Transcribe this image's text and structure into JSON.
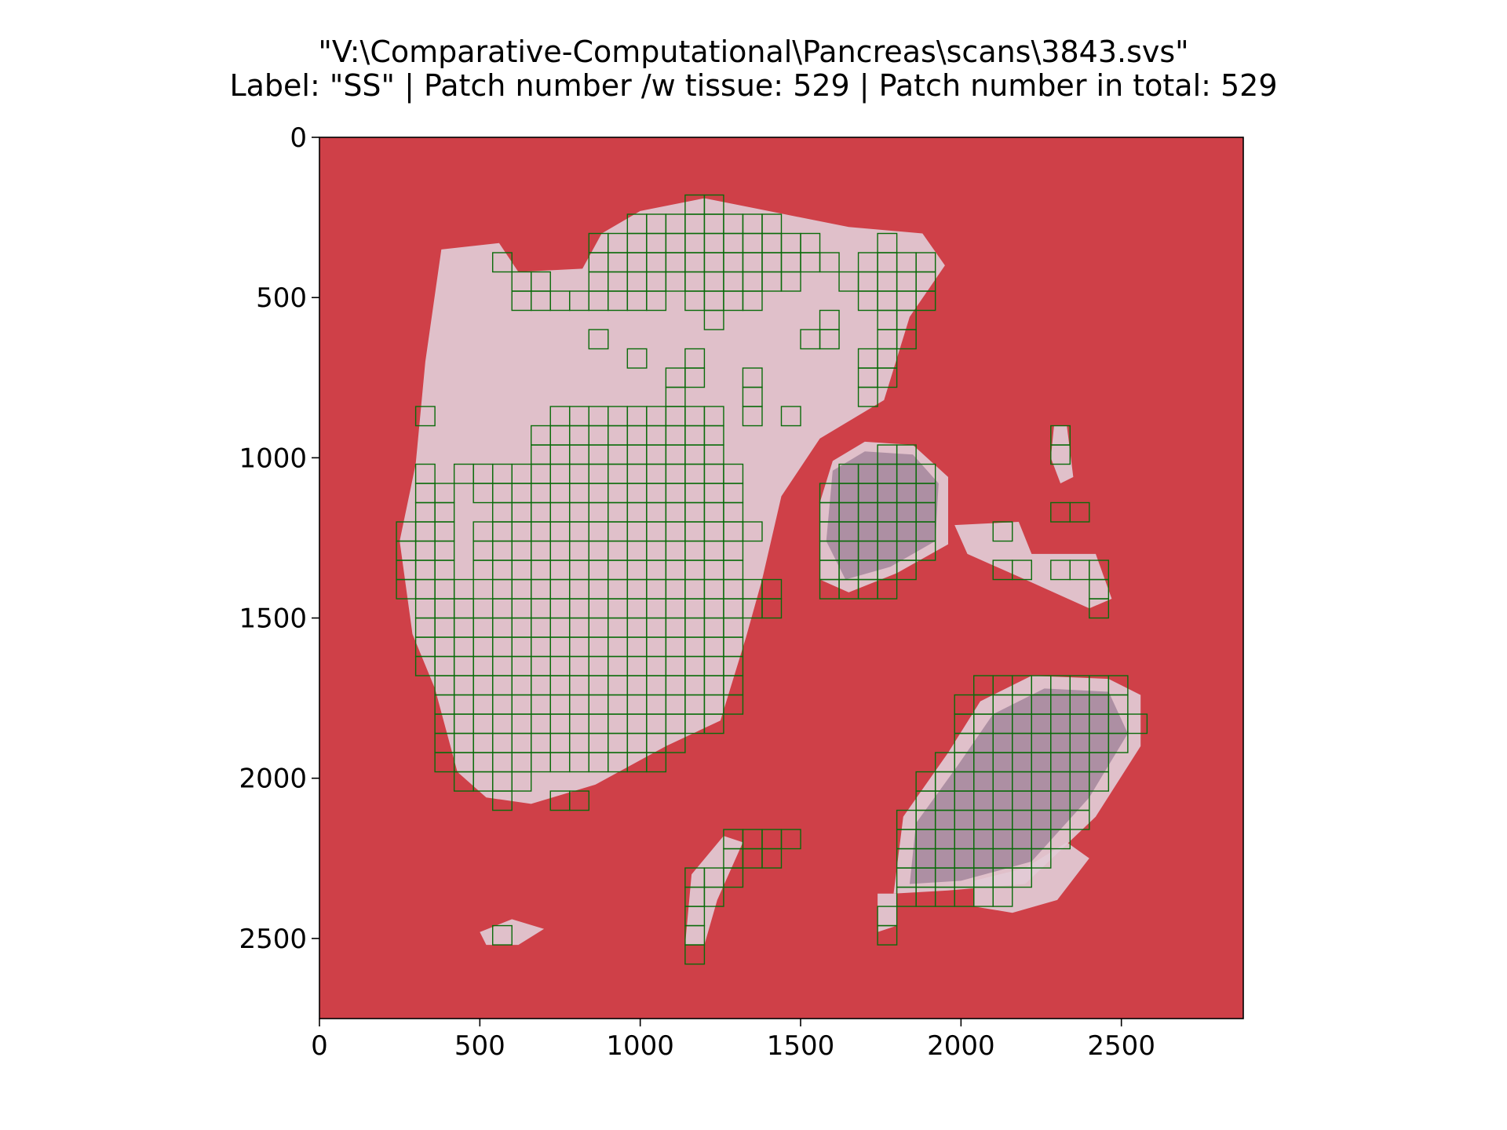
{
  "chart_data": {
    "type": "heatmap",
    "title_line1": "\"V:\\Comparative-Computational\\Pancreas\\scans\\3843.svs\"",
    "title_line2": "Label: \"SS\" | Patch number /w tissue: 529 | Patch number in total: 529",
    "xlim": [
      0,
      2880
    ],
    "ylim": [
      2750,
      0
    ],
    "x_ticks": [
      0,
      500,
      1000,
      1500,
      2000,
      2500
    ],
    "y_ticks": [
      0,
      500,
      1000,
      1500,
      2000,
      2500
    ],
    "patch_size_units": 60,
    "patch_count_with_tissue": 529,
    "patch_count_total": 529,
    "colors": {
      "background": "#cf4048",
      "tissue": "#e2cbd6",
      "tissue_dark": "#9c7f96",
      "patch_outline": "#0a6b0a",
      "axis": "#000000"
    },
    "patch_region_rows": [
      {
        "y": 180,
        "x": [
          [
            1140,
            1260
          ]
        ]
      },
      {
        "y": 240,
        "x": [
          [
            960,
            1440
          ]
        ]
      },
      {
        "y": 300,
        "x": [
          [
            840,
            1560
          ],
          [
            1740,
            1800
          ]
        ]
      },
      {
        "y": 360,
        "x": [
          [
            540,
            600
          ],
          [
            840,
            1620
          ],
          [
            1680,
            1920
          ]
        ]
      },
      {
        "y": 420,
        "x": [
          [
            600,
            720
          ],
          [
            840,
            1500
          ],
          [
            1620,
            1920
          ]
        ]
      },
      {
        "y": 480,
        "x": [
          [
            600,
            1080
          ],
          [
            1140,
            1380
          ],
          [
            1680,
            1920
          ]
        ]
      },
      {
        "y": 540,
        "x": [
          [
            1200,
            1260
          ],
          [
            1560,
            1620
          ],
          [
            1740,
            1860
          ]
        ]
      },
      {
        "y": 600,
        "x": [
          [
            840,
            900
          ],
          [
            1500,
            1620
          ],
          [
            1740,
            1860
          ]
        ]
      },
      {
        "y": 660,
        "x": [
          [
            960,
            1020
          ],
          [
            1140,
            1200
          ],
          [
            1680,
            1800
          ]
        ]
      },
      {
        "y": 720,
        "x": [
          [
            1080,
            1200
          ],
          [
            1320,
            1380
          ],
          [
            1680,
            1800
          ]
        ]
      },
      {
        "y": 780,
        "x": [
          [
            1080,
            1140
          ],
          [
            1320,
            1380
          ],
          [
            1680,
            1740
          ]
        ]
      },
      {
        "y": 840,
        "x": [
          [
            300,
            360
          ],
          [
            720,
            1260
          ],
          [
            1320,
            1380
          ],
          [
            1440,
            1500
          ]
        ]
      },
      {
        "y": 900,
        "x": [
          [
            660,
            1260
          ],
          [
            2280,
            2340
          ]
        ]
      },
      {
        "y": 960,
        "x": [
          [
            660,
            1260
          ],
          [
            1740,
            1860
          ],
          [
            2280,
            2340
          ]
        ]
      },
      {
        "y": 1020,
        "x": [
          [
            300,
            360
          ],
          [
            420,
            1320
          ],
          [
            1620,
            1920
          ]
        ]
      },
      {
        "y": 1080,
        "x": [
          [
            300,
            420
          ],
          [
            480,
            1320
          ],
          [
            1560,
            1920
          ]
        ]
      },
      {
        "y": 1140,
        "x": [
          [
            300,
            420
          ],
          [
            540,
            1320
          ],
          [
            1560,
            1920
          ],
          [
            2280,
            2400
          ]
        ]
      },
      {
        "y": 1200,
        "x": [
          [
            240,
            420
          ],
          [
            480,
            1380
          ],
          [
            1560,
            1920
          ],
          [
            2100,
            2160
          ]
        ]
      },
      {
        "y": 1260,
        "x": [
          [
            240,
            420
          ],
          [
            480,
            1320
          ],
          [
            1560,
            1920
          ]
        ]
      },
      {
        "y": 1320,
        "x": [
          [
            240,
            420
          ],
          [
            480,
            1320
          ],
          [
            1560,
            1860
          ],
          [
            2100,
            2220
          ],
          [
            2280,
            2460
          ]
        ]
      },
      {
        "y": 1380,
        "x": [
          [
            240,
            480
          ],
          [
            540,
            1440
          ],
          [
            1560,
            1800
          ],
          [
            2400,
            2460
          ]
        ]
      },
      {
        "y": 1440,
        "x": [
          [
            300,
            1440
          ],
          [
            2400,
            2460
          ]
        ]
      },
      {
        "y": 1500,
        "x": [
          [
            300,
            1320
          ]
        ]
      },
      {
        "y": 1560,
        "x": [
          [
            300,
            1320
          ]
        ]
      },
      {
        "y": 1620,
        "x": [
          [
            300,
            1320
          ]
        ]
      },
      {
        "y": 1680,
        "x": [
          [
            360,
            1320
          ],
          [
            2040,
            2520
          ]
        ]
      },
      {
        "y": 1740,
        "x": [
          [
            360,
            1320
          ],
          [
            1980,
            2520
          ]
        ]
      },
      {
        "y": 1800,
        "x": [
          [
            360,
            1260
          ],
          [
            1980,
            2580
          ]
        ]
      },
      {
        "y": 1860,
        "x": [
          [
            360,
            1140
          ],
          [
            1980,
            2520
          ]
        ]
      },
      {
        "y": 1920,
        "x": [
          [
            360,
            1080
          ],
          [
            1920,
            2460
          ]
        ]
      },
      {
        "y": 1980,
        "x": [
          [
            420,
            660
          ],
          [
            1860,
            2460
          ]
        ]
      },
      {
        "y": 2040,
        "x": [
          [
            540,
            600
          ],
          [
            720,
            840
          ],
          [
            1860,
            2400
          ]
        ]
      },
      {
        "y": 2100,
        "x": [
          [
            1800,
            2400
          ]
        ]
      },
      {
        "y": 2160,
        "x": [
          [
            1260,
            1500
          ],
          [
            1800,
            2340
          ]
        ]
      },
      {
        "y": 2220,
        "x": [
          [
            1260,
            1440
          ],
          [
            1800,
            2280
          ]
        ]
      },
      {
        "y": 2280,
        "x": [
          [
            1140,
            1320
          ],
          [
            1800,
            2220
          ]
        ]
      },
      {
        "y": 2340,
        "x": [
          [
            1140,
            1260
          ],
          [
            1800,
            2160
          ]
        ]
      },
      {
        "y": 2400,
        "x": [
          [
            1140,
            1200
          ],
          [
            1740,
            1800
          ]
        ]
      },
      {
        "y": 2460,
        "x": [
          [
            540,
            600
          ],
          [
            1140,
            1200
          ],
          [
            1740,
            1800
          ]
        ]
      },
      {
        "y": 2520,
        "x": [
          [
            1140,
            1200
          ]
        ]
      }
    ]
  }
}
